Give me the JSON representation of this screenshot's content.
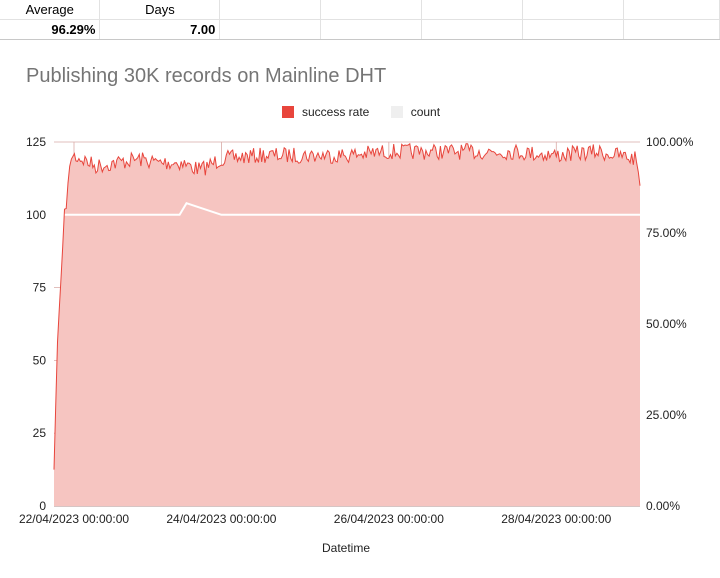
{
  "sheet": {
    "headers": [
      "Average",
      "Days"
    ],
    "values": [
      "96.29%",
      "7.00"
    ]
  },
  "colors": {
    "success_rate": "#e8453c",
    "success_fill": "#f6c5c1",
    "count": "#efefef",
    "count_line": "#ffffff",
    "gridline": "#d9aaa6"
  },
  "chart_data": {
    "type": "area",
    "title": "Publishing 30K records on Mainline DHT",
    "xlabel": "Datetime",
    "ylabel": "",
    "legend_position": "top",
    "grid": true,
    "legend": [
      "success rate",
      "count"
    ],
    "x_range": [
      "2023-04-22 00:00:00",
      "2023-04-29 00:00:00"
    ],
    "x_ticks": [
      "22/04/2023 00:00:00",
      "24/04/2023 00:00:00",
      "26/04/2023 00:00:00",
      "28/04/2023 00:00:00"
    ],
    "y_left": {
      "range": [
        0,
        125
      ],
      "ticks": [
        "0",
        "25",
        "50",
        "75",
        "100",
        "125"
      ]
    },
    "y_right": {
      "range": [
        0,
        1
      ],
      "ticks": [
        "0.00%",
        "25.00%",
        "50.00%",
        "75.00%",
        "100.00%"
      ]
    },
    "series": [
      {
        "name": "success rate",
        "axis": "right",
        "x": [
          "2023-04-22 00:00",
          "2023-04-22 01:00",
          "2023-04-22 03:00",
          "2023-04-22 05:00",
          "2023-04-22 08:00",
          "2023-04-22 12:00",
          "2023-04-22 18:00",
          "2023-04-23 00:00",
          "2023-04-23 06:00",
          "2023-04-23 12:00",
          "2023-04-23 18:00",
          "2023-04-24 00:00",
          "2023-04-24 12:00",
          "2023-04-25 00:00",
          "2023-04-25 12:00",
          "2023-04-26 00:00",
          "2023-04-26 12:00",
          "2023-04-27 00:00",
          "2023-04-27 12:00",
          "2023-04-28 00:00",
          "2023-04-28 12:00",
          "2023-04-28 23:00",
          "2023-04-29 00:00"
        ],
        "values": [
          0.1,
          0.45,
          0.8,
          0.97,
          0.96,
          0.94,
          0.95,
          0.96,
          0.95,
          0.95,
          0.93,
          0.96,
          0.97,
          0.97,
          0.97,
          0.98,
          0.98,
          0.98,
          0.98,
          0.97,
          0.98,
          0.96,
          0.88
        ]
      },
      {
        "name": "count",
        "axis": "left",
        "x": [
          "2023-04-22 00:00",
          "2023-04-22 06:00",
          "2023-04-23 12:00",
          "2023-04-23 14:00",
          "2023-04-24 00:00",
          "2023-04-28 00:00",
          "2023-04-29 00:00"
        ],
        "values": [
          100,
          100,
          100,
          104,
          100,
          100,
          100
        ]
      }
    ]
  }
}
